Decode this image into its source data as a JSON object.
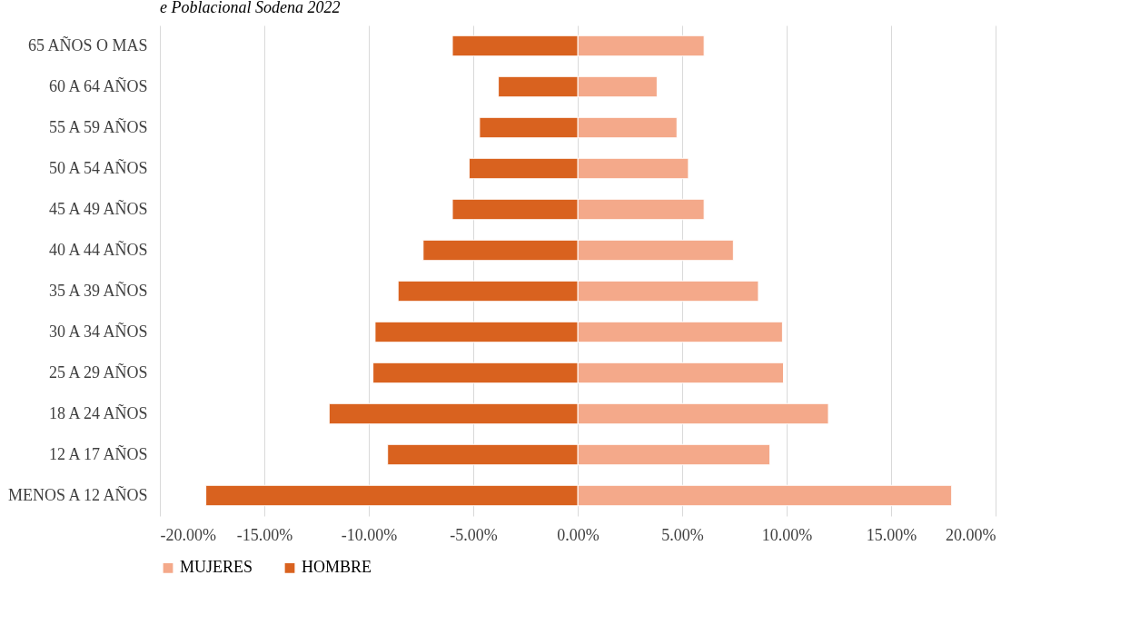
{
  "chart_data": {
    "type": "bar",
    "orientation": "horizontal",
    "title": "e Poblacional Sodena 2022",
    "categories": [
      "65 AÑOS O MAS",
      "60 A 64 AÑOS",
      "55 A 59 AÑOS",
      "50 A 54 AÑOS",
      "45 A 49 AÑOS",
      "40 A 44 AÑOS",
      "35 A 39 AÑOS",
      "30 A 34 AÑOS",
      "25 A 29 AÑOS",
      "18 A 24 AÑOS",
      "12 A 17 AÑOS",
      "MENOS A 12 AÑOS"
    ],
    "series": [
      {
        "name": "MUJERES",
        "color": "#f4a98a",
        "values": [
          6.05,
          3.8,
          4.75,
          5.3,
          6.05,
          7.45,
          8.65,
          9.8,
          9.85,
          12.0,
          9.2,
          17.9
        ]
      },
      {
        "name": "HOMBRE",
        "color": "#d9621f",
        "values": [
          -6.0,
          -3.8,
          -4.7,
          -5.2,
          -6.0,
          -7.4,
          -8.6,
          -9.7,
          -9.8,
          -11.9,
          -9.1,
          -17.8
        ]
      }
    ],
    "xlim": [
      -20,
      20
    ],
    "stacked": true,
    "xticks": [
      {
        "value": -20,
        "label": "-20.00%"
      },
      {
        "value": -15,
        "label": "-15.00%"
      },
      {
        "value": -10,
        "label": "-10.00%"
      },
      {
        "value": -5,
        "label": "-5.00%"
      },
      {
        "value": 0,
        "label": "0.00%"
      },
      {
        "value": 5,
        "label": "5.00%"
      },
      {
        "value": 10,
        "label": "10.00%"
      },
      {
        "value": 15,
        "label": "15.00%"
      },
      {
        "value": 20,
        "label": "20.00%"
      }
    ],
    "grid": "x",
    "legend": "bottom"
  }
}
